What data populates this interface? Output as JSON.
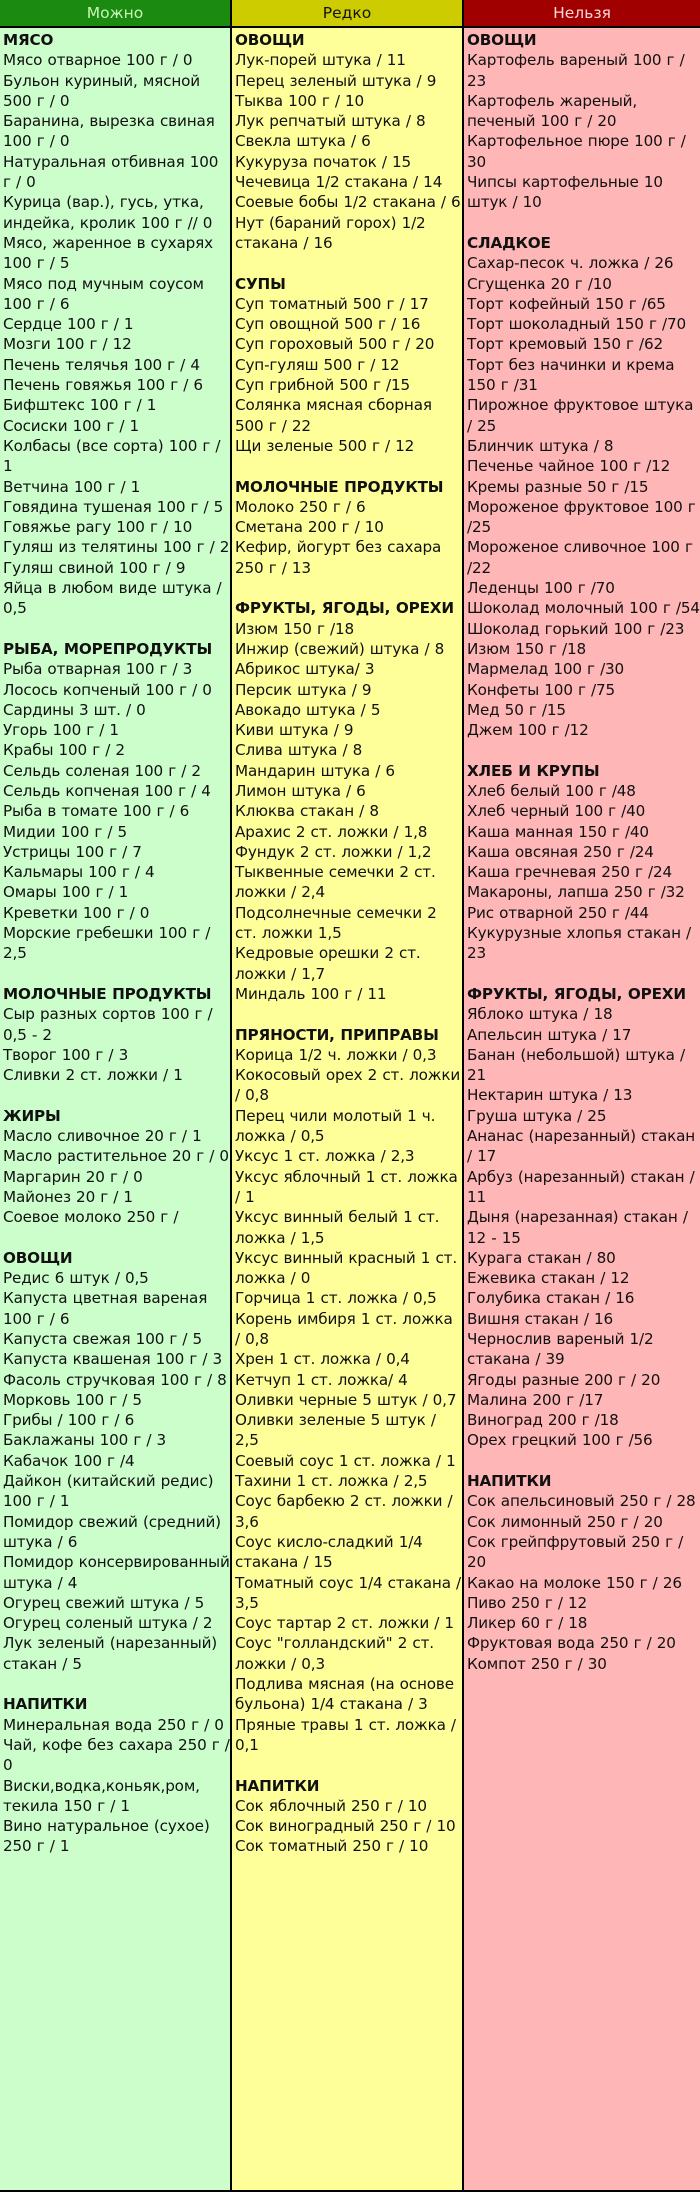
{
  "columns": [
    {
      "key": "can",
      "label": "Можно",
      "colors": {
        "header": "#1a8a10",
        "header_text": "#c8f5b4",
        "body": "#ccfecc"
      },
      "sections": [
        {
          "title": "МЯСО",
          "items": [
            "Мясо отварное 100 г / 0",
            "Бульон куриный, мясной 500 г / 0",
            "Баранина, вырезка свиная 100 г / 0",
            "Натуральная отбивная 100 г / 0",
            "Курица (вар.), гусь, утка, индейка, кролик 100 г // 0",
            "Мясо, жаренное в сухарях 100 г / 5",
            "Мясо под мучным соусом 100 г / 6",
            "Сердце 100 г / 1",
            "Мозги 100 г / 12",
            "Печень телячья 100 г / 4",
            "Печень говяжья 100 г / 6",
            "Бифштекс 100 г / 1",
            "Сосиски 100 г / 1",
            "Колбасы (все сорта) 100 г / 1",
            "Ветчина 100 г / 1",
            "Говядина тушеная 100 г / 5",
            "Говяжье рагу 100 г / 10",
            "Гуляш из телятины 100 г / 2",
            "Гуляш свиной 100 г / 9",
            "Яйца в любом виде штука / 0,5"
          ]
        },
        {
          "title": "РЫБА, МОРЕПРОДУКТЫ",
          "items": [
            "Рыба отварная 100 г / 3",
            "Лосось копченый 100 г / 0",
            "Сардины 3 шт. / 0",
            "Угорь 100 г / 1",
            "Крабы 100 г / 2",
            "Сельдь соленая 100 г / 2",
            "Сельдь копченая 100 г / 4",
            "Рыба в томате 100 г / 6",
            "Мидии 100 г / 5",
            "Устрицы 100 г / 7",
            "Кальмары 100 г / 4",
            "Омары 100 г / 1",
            "Креветки 100 г / 0",
            "Морские гребешки 100 г / 2,5"
          ]
        },
        {
          "title": "МОЛОЧНЫЕ ПРОДУКТЫ",
          "items": [
            "Сыр разных сортов 100 г / 0,5 - 2",
            "Творог 100 г / 3",
            "Сливки 2 ст. ложки / 1"
          ]
        },
        {
          "title": "ЖИРЫ",
          "items": [
            "Масло сливочное 20 г / 1",
            "Масло растительное 20 г / 0",
            "Маргарин 20 г / 0",
            "Майонез 20 г / 1",
            "Соевое молоко 250 г /"
          ]
        },
        {
          "title": "ОВОЩИ",
          "items": [
            "Редис 6 штук / 0,5",
            "Капуста цветная вареная 100 г / 6",
            "Капуста свежая 100 г / 5",
            "Капуста квашеная 100 г / 3",
            "Фасоль стручковая 100 г / 8",
            "Морковь 100 г / 5",
            "Грибы / 100 г / 6",
            "Баклажаны 100 г / 3",
            "Кабачок 100 г /4",
            "Дайкон (китайский редис) 100 г / 1",
            "Помидор свежий (средний) штука / 6",
            "Помидор консервированный штука / 4",
            "Огурец свежий штука / 5",
            "Огурец соленый штука / 2",
            "Лук зеленый (нарезанный) стакан / 5"
          ]
        },
        {
          "title": "НАПИТКИ",
          "items": [
            "Минеральная вода 250 г / 0",
            "Чай, кофе без сахара 250 г / 0",
            "Виски,водка,коньяк,ром, текила 150 г / 1",
            "Вино натуральное (сухое) 250 г / 1"
          ]
        }
      ]
    },
    {
      "key": "rare",
      "label": "Редко",
      "colors": {
        "header": "#cccc00",
        "header_text": "#111111",
        "body": "#ffff99"
      },
      "sections": [
        {
          "title": "ОВОЩИ",
          "items": [
            "Лук-порей штука / 11",
            "Перец зеленый штука / 9",
            "Тыква 100 г / 10",
            "Лук репчатый штука / 8",
            "Свекла штука / 6",
            "Кукуруза початок / 15",
            "Чечевица 1/2 стакана / 14",
            "Соевые бобы 1/2 стакана / 6",
            "Нут (бараний горох) 1/2 стакана / 16"
          ]
        },
        {
          "title": "СУПЫ",
          "items": [
            "Суп томатный 500 г / 17",
            "Суп овощной 500 г / 16",
            "Суп гороховый 500 г / 20",
            "Суп-гуляш 500 г / 12",
            "Суп грибной 500 г /15",
            "Солянка мясная сборная 500 г / 22",
            "Щи зеленые 500 г / 12"
          ]
        },
        {
          "title": "МОЛОЧНЫЕ ПРОДУКТЫ",
          "items": [
            "Молоко 250 г / 6",
            "Сметана 200 г / 10",
            "Кефир, йогурт без сахара 250 г / 13"
          ]
        },
        {
          "title": "ФРУКТЫ, ЯГОДЫ, ОРЕХИ",
          "items": [
            "Изюм 150 г /18",
            "Инжир (свежий) штука / 8",
            "Абрикос штука/ 3",
            "Персик штука / 9",
            "Авокадо штука / 5",
            "Киви штука / 9",
            "Слива штука / 8",
            "Мандарин штука / 6",
            "Лимон штука / 6",
            "Клюква стакан / 8",
            "Арахис 2 ст. ложки / 1,8",
            "Фундук 2 ст. ложки / 1,2",
            "Тыквенные семечки 2 ст. ложки / 2,4",
            "Подсолнечные семечки 2 ст. ложки 1,5",
            "Кедровые орешки 2 ст. ложки / 1,7",
            "Миндаль 100 г / 11"
          ]
        },
        {
          "title": "ПРЯНОСТИ, ПРИПРАВЫ",
          "items": [
            "Корица 1/2 ч. ложки / 0,3",
            "Кокосовый орех 2 ст. ложки / 0,8",
            "Перец чили молотый 1 ч. ложка / 0,5",
            "Уксус 1 ст. ложка / 2,3",
            "Уксус яблочный 1 ст. ложка / 1",
            "Уксус винный белый 1 ст. ложка / 1,5",
            "Уксус винный красный 1 ст. ложка / 0",
            "Горчица 1 ст. ложка / 0,5",
            "Корень имбиря 1 ст. ложка / 0,8",
            "Хрен 1 ст. ложка / 0,4",
            "Кетчуп 1 ст. ложка/ 4",
            "Оливки черные 5 штук / 0,7",
            "Оливки зеленые 5 штук / 2,5",
            "Соевый соус 1 ст. ложка / 1",
            "Тахини 1 ст. ложка / 2,5",
            "Соус барбекю 2 ст. ложки / 3,6",
            "Соус кисло-сладкий 1/4 стакана / 15",
            "Томатный соус 1/4 стакана / 3,5",
            "Соус тартар 2 ст. ложки / 1",
            "Соус \"голландский\" 2 ст. ложки / 0,3",
            "Подлива мясная (на основе бульона) 1/4 стакана / 3",
            "Пряные травы 1 ст. ложка / 0,1"
          ]
        },
        {
          "title": "НАПИТКИ",
          "items": [
            "Сок яблочный 250 г / 10",
            "Сок виноградный 250 г / 10",
            "Сок томатный 250 г / 10"
          ]
        }
      ]
    },
    {
      "key": "no",
      "label": "Нельзя",
      "colors": {
        "header": "#a00000",
        "header_text": "#ffd6d6",
        "body": "#ffb6b6"
      },
      "sections": [
        {
          "title": "ОВОЩИ",
          "items": [
            "Картофель вареный 100 г / 23",
            "Картофель жареный, печеный 100 г / 20",
            "Картофельное пюре 100 г / 30",
            "Чипсы картофельные 10 штук / 10"
          ]
        },
        {
          "title": "СЛАДКОЕ",
          "items": [
            "Сахар-песок ч. ложка / 26",
            "Сгущенка 20 г /10",
            "Торт кофейный 150 г /65",
            "Торт шоколадный 150 г /70",
            "Торт кремовый 150 г /62",
            "Торт без начинки и крема 150 г /31",
            "Пирожное фруктовое штука / 25",
            "Блинчик штука / 8",
            "Печенье чайное 100 г /12",
            "Кремы разные 50 г /15",
            "Мороженое фруктовое 100 г /25",
            "Мороженое сливочное 100 г /22",
            "Леденцы 100 г /70",
            "Шоколад молочный 100 г /54",
            "Шоколад горький 100 г /23",
            "Изюм 150 г /18",
            "Мармелад 100 г /30",
            "Конфеты 100 г /75",
            "Мед 50 г /15",
            "Джем 100 г /12"
          ]
        },
        {
          "title": "ХЛЕБ И КРУПЫ",
          "items": [
            "Хлеб белый 100 г /48",
            "Хлеб черный 100 г /40",
            "Каша манная 150 г /40",
            "Каша овсяная 250 г /24",
            "Каша гречневая 250 г /24",
            "Макароны, лапша 250 г /32",
            "Рис отварной 250 г /44",
            "Кукурузные хлопья стакан / 23"
          ]
        },
        {
          "title": "ФРУКТЫ, ЯГОДЫ, ОРЕХИ",
          "items": [
            "Яблоко штука / 18",
            "Апельсин штука / 17",
            "Банан (небольшой) штука / 21",
            "Нектарин штука / 13",
            "Груша штука / 25",
            "Ананас (нарезанный) стакан / 17",
            "Арбуз (нарезанный) стакан / 11",
            "Дыня (нарезанная) стакан / 12 - 15",
            "Курага стакан / 80",
            "Ежевика стакан / 12",
            "Голубика стакан / 16",
            "Вишня стакан / 16",
            "Чернослив вареный 1/2 стакана / 39",
            "Ягоды разные 200 г / 20",
            "Малина 200 г /17",
            "Виноград 200 г /18",
            "Орех грецкий 100 г /56"
          ]
        },
        {
          "title": "НАПИТКИ",
          "items": [
            "Сок апельсиновый 250 г / 28",
            "Сок лимонный 250 г / 20",
            "Сок грейпфрутовый 250 г / 20",
            "Какао на молоке 150 г / 26",
            "Пиво 250 г / 12",
            "Ликер 60 г / 18",
            "Фруктовая вода 250 г / 20",
            "Компот 250 г / 30"
          ]
        }
      ]
    }
  ]
}
